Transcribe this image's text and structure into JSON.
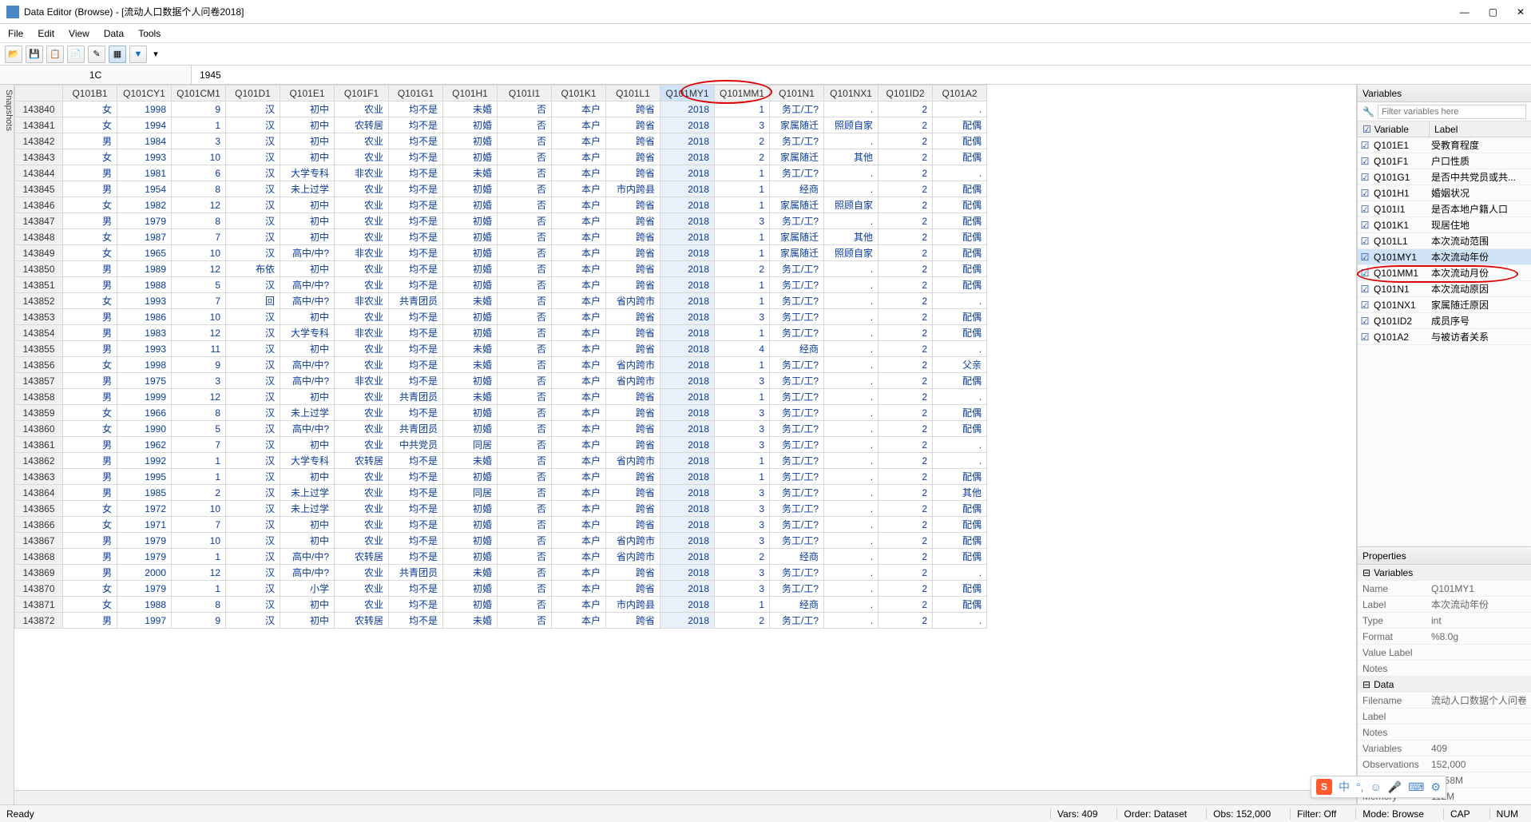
{
  "window": {
    "title": "Data Editor (Browse) - [流动人口数据个人问卷2018]"
  },
  "menu": [
    "File",
    "Edit",
    "View",
    "Data",
    "Tools"
  ],
  "inputbar": {
    "cell": "1C",
    "value": "1945"
  },
  "snapshots_label": "Snapshots",
  "highlighted_col": "Q101MY1",
  "columns": [
    "Q101B1",
    "Q101CY1",
    "Q101CM1",
    "Q101D1",
    "Q101E1",
    "Q101F1",
    "Q101G1",
    "Q101H1",
    "Q101I1",
    "Q101K1",
    "Q101L1",
    "Q101MY1",
    "Q101MM1",
    "Q101N1",
    "Q101NX1",
    "Q101ID2",
    "Q101A2"
  ],
  "rows": [
    {
      "id": "143840",
      "c": [
        "女",
        "1998",
        "9",
        "汉",
        "初中",
        "农业",
        "均不是",
        "未婚",
        "否",
        "本户",
        "跨省",
        "2018",
        "1",
        "务工/工?",
        ".",
        "2",
        "."
      ]
    },
    {
      "id": "143841",
      "c": [
        "女",
        "1994",
        "1",
        "汉",
        "初中",
        "农转居",
        "均不是",
        "初婚",
        "否",
        "本户",
        "跨省",
        "2018",
        "3",
        "家属随迁",
        "照顾自家",
        "2",
        "配偶"
      ]
    },
    {
      "id": "143842",
      "c": [
        "男",
        "1984",
        "3",
        "汉",
        "初中",
        "农业",
        "均不是",
        "初婚",
        "否",
        "本户",
        "跨省",
        "2018",
        "2",
        "务工/工?",
        ".",
        "2",
        "配偶"
      ]
    },
    {
      "id": "143843",
      "c": [
        "女",
        "1993",
        "10",
        "汉",
        "初中",
        "农业",
        "均不是",
        "初婚",
        "否",
        "本户",
        "跨省",
        "2018",
        "2",
        "家属随迁",
        "其他",
        "2",
        "配偶"
      ]
    },
    {
      "id": "143844",
      "c": [
        "男",
        "1981",
        "6",
        "汉",
        "大学专科",
        "非农业",
        "均不是",
        "未婚",
        "否",
        "本户",
        "跨省",
        "2018",
        "1",
        "务工/工?",
        ".",
        "2",
        "."
      ]
    },
    {
      "id": "143845",
      "c": [
        "男",
        "1954",
        "8",
        "汉",
        "未上过学",
        "农业",
        "均不是",
        "初婚",
        "否",
        "本户",
        "市内跨县",
        "2018",
        "1",
        "经商",
        ".",
        "2",
        "配偶"
      ]
    },
    {
      "id": "143846",
      "c": [
        "女",
        "1982",
        "12",
        "汉",
        "初中",
        "农业",
        "均不是",
        "初婚",
        "否",
        "本户",
        "跨省",
        "2018",
        "1",
        "家属随迁",
        "照顾自家",
        "2",
        "配偶"
      ]
    },
    {
      "id": "143847",
      "c": [
        "男",
        "1979",
        "8",
        "汉",
        "初中",
        "农业",
        "均不是",
        "初婚",
        "否",
        "本户",
        "跨省",
        "2018",
        "3",
        "务工/工?",
        ".",
        "2",
        "配偶"
      ]
    },
    {
      "id": "143848",
      "c": [
        "女",
        "1987",
        "7",
        "汉",
        "初中",
        "农业",
        "均不是",
        "初婚",
        "否",
        "本户",
        "跨省",
        "2018",
        "1",
        "家属随迁",
        "其他",
        "2",
        "配偶"
      ]
    },
    {
      "id": "143849",
      "c": [
        "女",
        "1965",
        "10",
        "汉",
        "高中/中?",
        "非农业",
        "均不是",
        "初婚",
        "否",
        "本户",
        "跨省",
        "2018",
        "1",
        "家属随迁",
        "照顾自家",
        "2",
        "配偶"
      ]
    },
    {
      "id": "143850",
      "c": [
        "男",
        "1989",
        "12",
        "布依",
        "初中",
        "农业",
        "均不是",
        "初婚",
        "否",
        "本户",
        "跨省",
        "2018",
        "2",
        "务工/工?",
        ".",
        "2",
        "配偶"
      ]
    },
    {
      "id": "143851",
      "c": [
        "男",
        "1988",
        "5",
        "汉",
        "高中/中?",
        "农业",
        "均不是",
        "初婚",
        "否",
        "本户",
        "跨省",
        "2018",
        "1",
        "务工/工?",
        ".",
        "2",
        "配偶"
      ]
    },
    {
      "id": "143852",
      "c": [
        "女",
        "1993",
        "7",
        "回",
        "高中/中?",
        "非农业",
        "共青团员",
        "未婚",
        "否",
        "本户",
        "省内跨市",
        "2018",
        "1",
        "务工/工?",
        ".",
        "2",
        "."
      ]
    },
    {
      "id": "143853",
      "c": [
        "男",
        "1986",
        "10",
        "汉",
        "初中",
        "农业",
        "均不是",
        "初婚",
        "否",
        "本户",
        "跨省",
        "2018",
        "3",
        "务工/工?",
        ".",
        "2",
        "配偶"
      ]
    },
    {
      "id": "143854",
      "c": [
        "男",
        "1983",
        "12",
        "汉",
        "大学专科",
        "非农业",
        "均不是",
        "初婚",
        "否",
        "本户",
        "跨省",
        "2018",
        "1",
        "务工/工?",
        ".",
        "2",
        "配偶"
      ]
    },
    {
      "id": "143855",
      "c": [
        "男",
        "1993",
        "11",
        "汉",
        "初中",
        "农业",
        "均不是",
        "未婚",
        "否",
        "本户",
        "跨省",
        "2018",
        "4",
        "经商",
        ".",
        "2",
        "."
      ]
    },
    {
      "id": "143856",
      "c": [
        "女",
        "1998",
        "9",
        "汉",
        "高中/中?",
        "农业",
        "均不是",
        "未婚",
        "否",
        "本户",
        "省内跨市",
        "2018",
        "1",
        "务工/工?",
        ".",
        "2",
        "父亲"
      ]
    },
    {
      "id": "143857",
      "c": [
        "男",
        "1975",
        "3",
        "汉",
        "高中/中?",
        "非农业",
        "均不是",
        "初婚",
        "否",
        "本户",
        "省内跨市",
        "2018",
        "3",
        "务工/工?",
        ".",
        "2",
        "配偶"
      ]
    },
    {
      "id": "143858",
      "c": [
        "男",
        "1999",
        "12",
        "汉",
        "初中",
        "农业",
        "共青团员",
        "未婚",
        "否",
        "本户",
        "跨省",
        "2018",
        "1",
        "务工/工?",
        ".",
        "2",
        "."
      ]
    },
    {
      "id": "143859",
      "c": [
        "女",
        "1966",
        "8",
        "汉",
        "未上过学",
        "农业",
        "均不是",
        "初婚",
        "否",
        "本户",
        "跨省",
        "2018",
        "3",
        "务工/工?",
        ".",
        "2",
        "配偶"
      ]
    },
    {
      "id": "143860",
      "c": [
        "女",
        "1990",
        "5",
        "汉",
        "高中/中?",
        "农业",
        "共青团员",
        "初婚",
        "否",
        "本户",
        "跨省",
        "2018",
        "3",
        "务工/工?",
        ".",
        "2",
        "配偶"
      ]
    },
    {
      "id": "143861",
      "c": [
        "男",
        "1962",
        "7",
        "汉",
        "初中",
        "农业",
        "中共党员",
        "同居",
        "否",
        "本户",
        "跨省",
        "2018",
        "3",
        "务工/工?",
        ".",
        "2",
        "."
      ]
    },
    {
      "id": "143862",
      "c": [
        "男",
        "1992",
        "1",
        "汉",
        "大学专科",
        "农转居",
        "均不是",
        "未婚",
        "否",
        "本户",
        "省内跨市",
        "2018",
        "1",
        "务工/工?",
        ".",
        "2",
        "."
      ]
    },
    {
      "id": "143863",
      "c": [
        "男",
        "1995",
        "1",
        "汉",
        "初中",
        "农业",
        "均不是",
        "初婚",
        "否",
        "本户",
        "跨省",
        "2018",
        "1",
        "务工/工?",
        ".",
        "2",
        "配偶"
      ]
    },
    {
      "id": "143864",
      "c": [
        "男",
        "1985",
        "2",
        "汉",
        "未上过学",
        "农业",
        "均不是",
        "同居",
        "否",
        "本户",
        "跨省",
        "2018",
        "3",
        "务工/工?",
        ".",
        "2",
        "其他"
      ]
    },
    {
      "id": "143865",
      "c": [
        "女",
        "1972",
        "10",
        "汉",
        "未上过学",
        "农业",
        "均不是",
        "初婚",
        "否",
        "本户",
        "跨省",
        "2018",
        "3",
        "务工/工?",
        ".",
        "2",
        "配偶"
      ]
    },
    {
      "id": "143866",
      "c": [
        "女",
        "1971",
        "7",
        "汉",
        "初中",
        "农业",
        "均不是",
        "初婚",
        "否",
        "本户",
        "跨省",
        "2018",
        "3",
        "务工/工?",
        ".",
        "2",
        "配偶"
      ]
    },
    {
      "id": "143867",
      "c": [
        "男",
        "1979",
        "10",
        "汉",
        "初中",
        "农业",
        "均不是",
        "初婚",
        "否",
        "本户",
        "省内跨市",
        "2018",
        "3",
        "务工/工?",
        ".",
        "2",
        "配偶"
      ]
    },
    {
      "id": "143868",
      "c": [
        "男",
        "1979",
        "1",
        "汉",
        "高中/中?",
        "农转居",
        "均不是",
        "初婚",
        "否",
        "本户",
        "省内跨市",
        "2018",
        "2",
        "经商",
        ".",
        "2",
        "配偶"
      ]
    },
    {
      "id": "143869",
      "c": [
        "男",
        "2000",
        "12",
        "汉",
        "高中/中?",
        "农业",
        "共青团员",
        "未婚",
        "否",
        "本户",
        "跨省",
        "2018",
        "3",
        "务工/工?",
        ".",
        "2",
        "."
      ]
    },
    {
      "id": "143870",
      "c": [
        "女",
        "1979",
        "1",
        "汉",
        "小学",
        "农业",
        "均不是",
        "初婚",
        "否",
        "本户",
        "跨省",
        "2018",
        "3",
        "务工/工?",
        ".",
        "2",
        "配偶"
      ]
    },
    {
      "id": "143871",
      "c": [
        "女",
        "1988",
        "8",
        "汉",
        "初中",
        "农业",
        "均不是",
        "初婚",
        "否",
        "本户",
        "市内跨县",
        "2018",
        "1",
        "经商",
        ".",
        "2",
        "配偶"
      ]
    },
    {
      "id": "143872",
      "c": [
        "男",
        "1997",
        "9",
        "汉",
        "初中",
        "农转居",
        "均不是",
        "未婚",
        "否",
        "本户",
        "跨省",
        "2018",
        "2",
        "务工/工?",
        ".",
        "2",
        "."
      ]
    }
  ],
  "varpanel": {
    "title": "Variables",
    "filter_placeholder": "Filter variables here",
    "head_var": "Variable",
    "head_label": "Label",
    "selected": "Q101MY1",
    "items": [
      {
        "n": "Q101E1",
        "l": "受教育程度"
      },
      {
        "n": "Q101F1",
        "l": "户口性质"
      },
      {
        "n": "Q101G1",
        "l": "是否中共党员或共..."
      },
      {
        "n": "Q101H1",
        "l": "婚姻状况"
      },
      {
        "n": "Q101I1",
        "l": "是否本地户籍人口"
      },
      {
        "n": "Q101K1",
        "l": "现居住地"
      },
      {
        "n": "Q101L1",
        "l": "本次流动范围"
      },
      {
        "n": "Q101MY1",
        "l": "本次流动年份"
      },
      {
        "n": "Q101MM1",
        "l": "本次流动月份"
      },
      {
        "n": "Q101N1",
        "l": "本次流动原因"
      },
      {
        "n": "Q101NX1",
        "l": "家属随迁原因"
      },
      {
        "n": "Q101ID2",
        "l": "成员序号"
      },
      {
        "n": "Q101A2",
        "l": "与被访者关系"
      }
    ]
  },
  "props": {
    "title": "Properties",
    "groups": [
      {
        "name": "Variables",
        "items": [
          {
            "k": "Name",
            "v": "Q101MY1"
          },
          {
            "k": "Label",
            "v": "本次流动年份"
          },
          {
            "k": "Type",
            "v": "int"
          },
          {
            "k": "Format",
            "v": "%8.0g"
          },
          {
            "k": "Value Label",
            "v": ""
          },
          {
            "k": "Notes",
            "v": ""
          }
        ]
      },
      {
        "name": "Data",
        "items": [
          {
            "k": "Filename",
            "v": "流动人口数据个人问卷"
          },
          {
            "k": "Label",
            "v": ""
          },
          {
            "k": "Notes",
            "v": ""
          },
          {
            "k": "Variables",
            "v": "409"
          },
          {
            "k": "Observations",
            "v": "152,000"
          },
          {
            "k": "Size",
            "v": "79.58M"
          },
          {
            "k": "Memory",
            "v": "112M"
          }
        ]
      }
    ]
  },
  "status": {
    "ready": "Ready",
    "vars": "Vars: 409",
    "order": "Order: Dataset",
    "obs": "Obs: 152,000",
    "filter": "Filter: Off",
    "mode": "Mode: Browse",
    "cap": "CAP",
    "num": "NUM"
  }
}
